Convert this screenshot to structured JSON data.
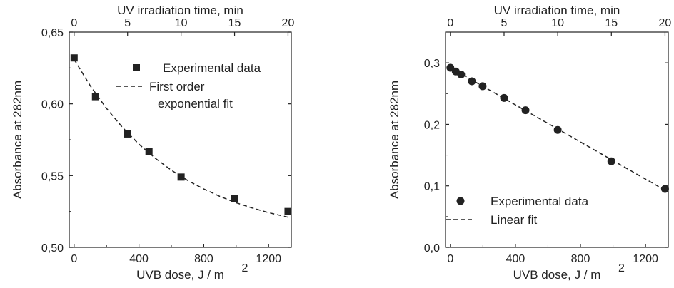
{
  "chart_data": [
    {
      "type": "scatter",
      "title": "",
      "xlabel": "UVB dose, J / m",
      "xlabel_sup": "2",
      "ylabel": "Absorbance at 282nm",
      "top_xlabel": "UV irradiation time, min",
      "xlim": [
        -30,
        1340
      ],
      "ylim": [
        0.5,
        0.65
      ],
      "xticks": [
        "0",
        "400",
        "800",
        "1200"
      ],
      "xtick_values": [
        0,
        400,
        800,
        1200
      ],
      "yticks": [
        "0,50",
        "0,55",
        "0,60",
        "0,65"
      ],
      "ytick_values": [
        0.5,
        0.55,
        0.6,
        0.65
      ],
      "top_xticks": [
        "0",
        "5",
        "10",
        "15",
        "20"
      ],
      "top_xtick_values": [
        0,
        330,
        660,
        990,
        1320
      ],
      "grid": false,
      "legend_position": "top-right",
      "series": [
        {
          "name": "Experimental data",
          "marker": "square",
          "x": [
            0,
            132,
            330,
            462,
            660,
            990,
            1320
          ],
          "y": [
            0.632,
            0.605,
            0.579,
            0.567,
            0.549,
            0.534,
            0.525
          ]
        },
        {
          "name": "First order exponential fit",
          "name_lines": [
            "First order",
            "exponential fit"
          ],
          "style": "dashed",
          "x": [
            0,
            100,
            200,
            300,
            400,
            500,
            600,
            700,
            800,
            900,
            1000,
            1100,
            1200,
            1320
          ],
          "y": [
            0.631,
            0.6125,
            0.5968,
            0.5834,
            0.5719,
            0.5622,
            0.5538,
            0.5467,
            0.5407,
            0.5355,
            0.5311,
            0.5274,
            0.5242,
            0.521
          ]
        }
      ]
    },
    {
      "type": "scatter",
      "title": "",
      "xlabel": "UVB dose, J / m",
      "xlabel_sup": "2",
      "ylabel": "Absorbance at 282nm",
      "top_xlabel": "UV irradiation time, min",
      "xlim": [
        -30,
        1340
      ],
      "ylim": [
        0.0,
        0.35
      ],
      "xticks": [
        "0",
        "400",
        "800",
        "1200"
      ],
      "xtick_values": [
        0,
        400,
        800,
        1200
      ],
      "yticks": [
        "0,0",
        "0,1",
        "0,2",
        "0,3"
      ],
      "ytick_values": [
        0.0,
        0.1,
        0.2,
        0.3
      ],
      "top_xticks": [
        "0",
        "5",
        "10",
        "15",
        "20"
      ],
      "top_xtick_values": [
        0,
        330,
        660,
        990,
        1320
      ],
      "grid": false,
      "legend_position": "bottom-right",
      "series": [
        {
          "name": "Experimental data",
          "marker": "circle",
          "x": [
            0,
            33,
            66,
            132,
            198,
            330,
            462,
            660,
            990,
            1320
          ],
          "y": [
            0.292,
            0.286,
            0.281,
            0.27,
            0.262,
            0.243,
            0.223,
            0.191,
            0.14,
            0.095
          ]
        },
        {
          "name": "Linear fit",
          "style": "dashed",
          "x": [
            0,
            1320
          ],
          "y": [
            0.292,
            0.093
          ]
        }
      ]
    }
  ]
}
